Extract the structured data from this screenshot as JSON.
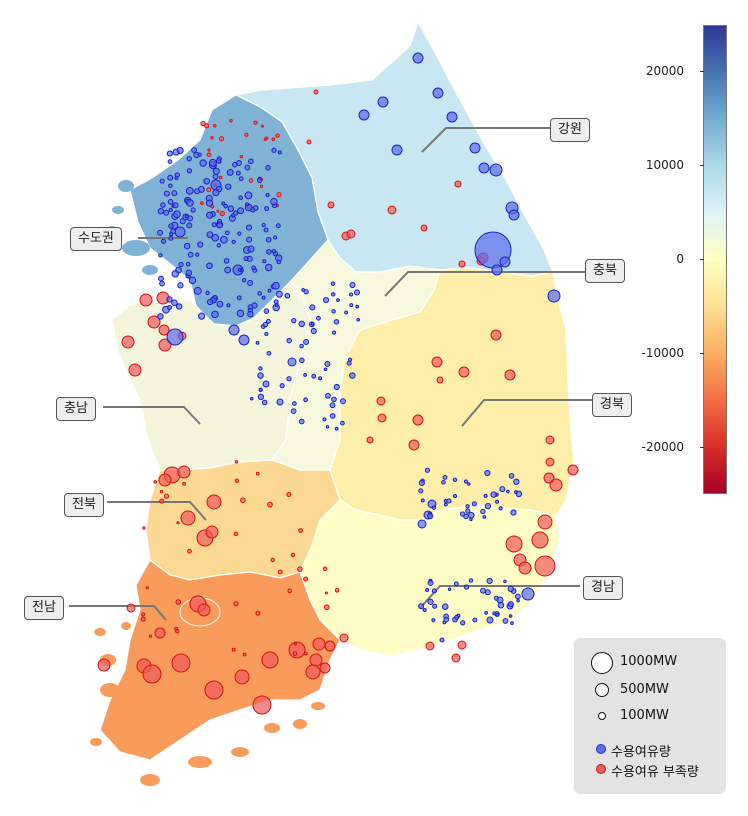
{
  "regions": [
    {
      "id": "capital",
      "label": "수도권",
      "color": "#7fb2d4"
    },
    {
      "id": "gangwon",
      "label": "강원",
      "color": "#c9e7f2"
    },
    {
      "id": "chungbuk",
      "label": "충북",
      "color": "#f6f9de"
    },
    {
      "id": "chungnam",
      "label": "충남",
      "color": "#f3f6dc"
    },
    {
      "id": "gyeongbuk",
      "label": "경북",
      "color": "#fdefaa"
    },
    {
      "id": "jeonbuk",
      "label": "전북",
      "color": "#fbd993"
    },
    {
      "id": "gyeongnam",
      "label": "경남",
      "color": "#fefdc6"
    },
    {
      "id": "jeonnam",
      "label": "전남",
      "color": "#f99b5b"
    }
  ],
  "colorbar": {
    "ticks": [
      "20000",
      "10000",
      "0",
      "-10000",
      "-20000"
    ],
    "max": 25000,
    "min": -25000,
    "colors": [
      "#313695",
      "#4575b4",
      "#74add1",
      "#abd9e9",
      "#e0f3f8",
      "#ffffbf",
      "#fee090",
      "#fdae61",
      "#f46d43",
      "#d73027",
      "#a50026"
    ]
  },
  "legend": {
    "sizes": [
      {
        "label": "1000MW",
        "mw": 1000
      },
      {
        "label": "500MW",
        "mw": 500
      },
      {
        "label": "100MW",
        "mw": 100
      }
    ],
    "surplus_label": "수용여유량",
    "deficit_label": "수용여유 부족량",
    "surplus_color": "#5a6cf0",
    "deficit_color": "#f05a5a"
  }
}
